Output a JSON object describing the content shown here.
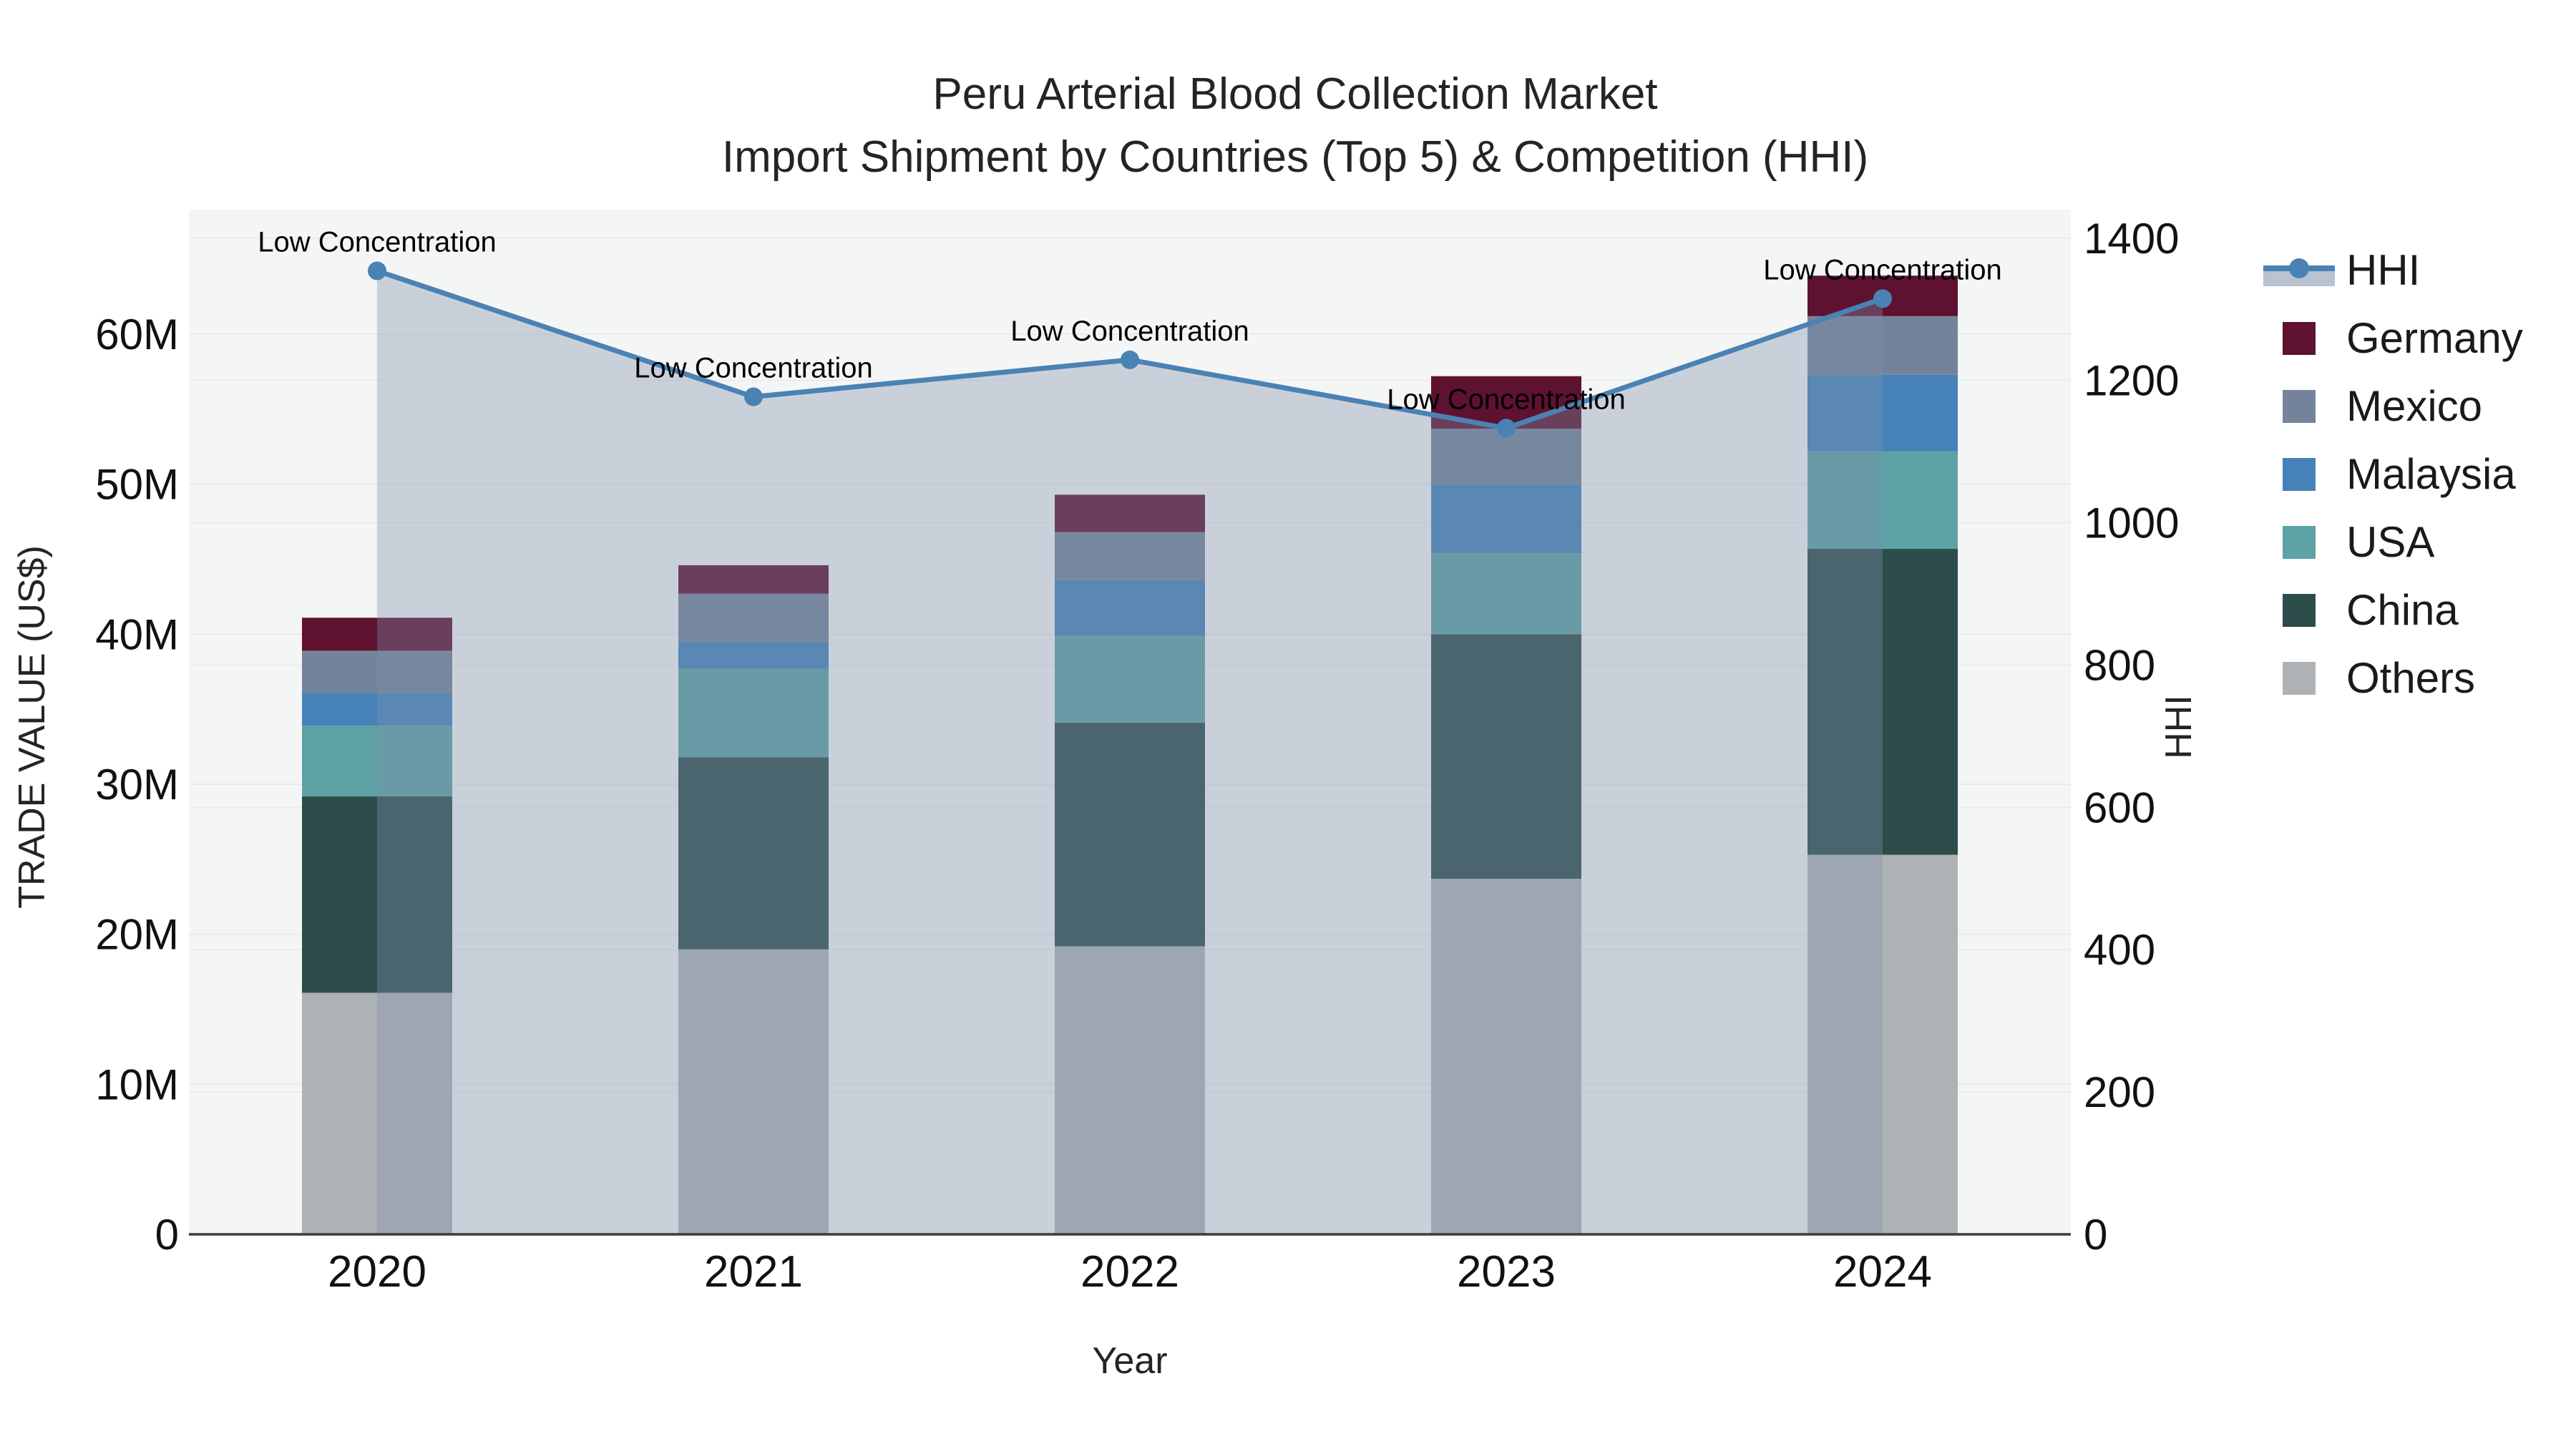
{
  "title": {
    "line1": "Peru Arterial Blood Collection Market",
    "line2": "Import Shipment by Countries (Top 5) & Competition (HHI)"
  },
  "chart_data": {
    "type": "bar+line",
    "title": "Peru Arterial Blood Collection Market Import Shipment by Countries (Top 5) & Competition (HHI)",
    "categories": [
      "2020",
      "2021",
      "2022",
      "2023",
      "2024"
    ],
    "values_unit": "millions US$",
    "series": [
      {
        "name": "Others",
        "color": "#afb2b4",
        "values": [
          16.1,
          19.0,
          19.2,
          23.7,
          25.3
        ]
      },
      {
        "name": "China",
        "color": "#2d4d4b",
        "values": [
          13.1,
          12.8,
          14.9,
          16.3,
          20.4
        ]
      },
      {
        "name": "USA",
        "color": "#5da2a4",
        "values": [
          4.7,
          5.9,
          5.8,
          5.4,
          6.5
        ]
      },
      {
        "name": "Malaysia",
        "color": "#4682b9",
        "values": [
          2.2,
          1.8,
          3.7,
          4.6,
          5.1
        ]
      },
      {
        "name": "Mexico",
        "color": "#75839a",
        "values": [
          2.8,
          3.2,
          3.2,
          3.7,
          3.9
        ]
      },
      {
        "name": "Germany",
        "color": "#5f1230",
        "values": [
          2.2,
          1.9,
          2.5,
          3.5,
          2.7
        ]
      }
    ],
    "line_series": {
      "name": "HHI",
      "color": "#4a82b4",
      "area_color": "rgba(128,144,172,0.36)",
      "values": [
        1354,
        1177,
        1229,
        1133,
        1315
      ]
    },
    "annotations": [
      {
        "text": "Low Concentration",
        "x_index": 0
      },
      {
        "text": "Low Concentration",
        "x_index": 1
      },
      {
        "text": "Low Concentration",
        "x_index": 2
      },
      {
        "text": "Low Concentration",
        "x_index": 3
      },
      {
        "text": "Low Concentration",
        "x_index": 4
      }
    ],
    "x_axis": {
      "title": "Year"
    },
    "y_left": {
      "title": "TRADE VALUE (US$)",
      "tick_labels": [
        "0",
        "10M",
        "20M",
        "30M",
        "40M",
        "50M",
        "60M"
      ],
      "tick_values": [
        0,
        10,
        20,
        30,
        40,
        50,
        60
      ],
      "max": 68.3
    },
    "y_right": {
      "title": "HHI",
      "tick_labels": [
        "0",
        "200",
        "400",
        "600",
        "800",
        "1000",
        "1200",
        "1400"
      ],
      "tick_values": [
        0,
        200,
        400,
        600,
        800,
        1000,
        1200,
        1400
      ],
      "max": 1440
    },
    "legend_position": "right",
    "grid": true
  },
  "legend": [
    {
      "label": "HHI",
      "type": "line",
      "line_color": "#4a82b4",
      "band_color": "rgba(128,144,172,0.55)"
    },
    {
      "label": "Germany",
      "type": "square",
      "color": "#5f1230"
    },
    {
      "label": "Mexico",
      "type": "square",
      "color": "#75839a"
    },
    {
      "label": "Malaysia",
      "type": "square",
      "color": "#4682b9"
    },
    {
      "label": "USA",
      "type": "square",
      "color": "#5da2a4"
    },
    {
      "label": "China",
      "type": "square",
      "color": "#2d4d4b"
    },
    {
      "label": "Others",
      "type": "square",
      "color": "#afb2b4"
    }
  ],
  "colors": {
    "plot_background": "#f4f5f5",
    "grid_line": "#e8eaeb",
    "axis_line": "#3c3c3c",
    "tick_text": "#111111",
    "annotation_text": "#000000"
  }
}
